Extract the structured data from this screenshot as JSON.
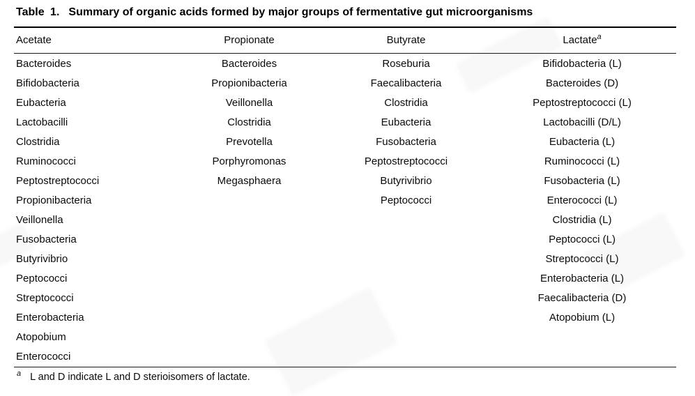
{
  "title": {
    "label": "Table 1.",
    "text": "Summary of organic acids formed by major groups of fermentative gut microorganisms"
  },
  "table": {
    "headers": [
      {
        "label": "Acetate",
        "sup": ""
      },
      {
        "label": "Propionate",
        "sup": ""
      },
      {
        "label": "Butyrate",
        "sup": ""
      },
      {
        "label": "Lactate",
        "sup": "a"
      }
    ],
    "columns": {
      "acetate": [
        "Bacteroides",
        "Bifidobacteria",
        "Eubacteria",
        "Lactobacilli",
        "Clostridia",
        "Ruminococci",
        "Peptostreptococci",
        "Propionibacteria",
        "Veillonella",
        "Fusobacteria",
        "Butyrivibrio",
        "Peptococci",
        "Streptococci",
        "Enterobacteria",
        "Atopobium",
        "Enterococci"
      ],
      "propionate": [
        "Bacteroides",
        "Propionibacteria",
        "Veillonella",
        "Clostridia",
        "Prevotella",
        "Porphyromonas",
        "Megasphaera"
      ],
      "butyrate": [
        "Roseburia",
        "Faecalibacteria",
        "Clostridia",
        "Eubacteria",
        "Fusobacteria",
        "Peptostreptococci",
        "Butyrivibrio",
        "Peptococci"
      ],
      "lactate": [
        "Bifidobacteria (L)",
        "Bacteroides (D)",
        "Peptostreptococci (L)",
        "Lactobacilli (D/L)",
        "Eubacteria (L)",
        "Ruminococci (L)",
        "Fusobacteria (L)",
        "Enterococci (L)",
        "Clostridia (L)",
        "Peptococci (L)",
        "Streptococci (L)",
        "Enterobacteria (L)",
        "Faecalibacteria (D)",
        "Atopobium (L)"
      ]
    }
  },
  "footnote": {
    "marker": "a",
    "text": "L and D indicate L and D sterioisomers of lactate."
  },
  "colors": {
    "text": "#000000",
    "rule": "#000000",
    "background": "#ffffff"
  }
}
